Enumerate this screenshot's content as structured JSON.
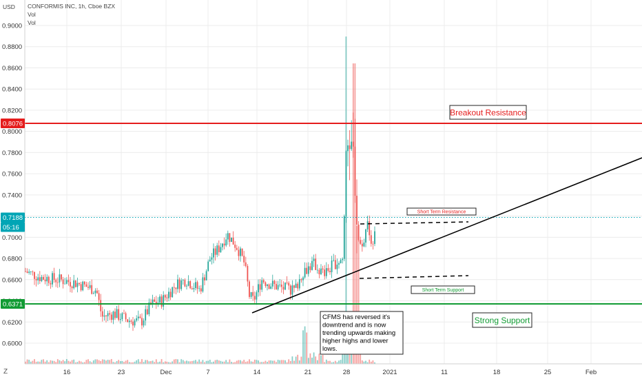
{
  "header": {
    "currency": "USD",
    "symbol_line": "CONFORMIS INC, 1h, Cboe BZX",
    "vol_label_1": "Vol",
    "vol_label_2": "Vol"
  },
  "timezone_button": "Z",
  "chart_data": {
    "type": "candlestick",
    "yticks": [
      "0.9000",
      "0.8800",
      "0.8600",
      "0.8400",
      "0.8200",
      "0.8000",
      "0.7800",
      "0.7600",
      "0.7400",
      "0.7200",
      "0.7000",
      "0.6800",
      "0.6600",
      "0.6400",
      "0.6200",
      "0.6000"
    ],
    "ylim": [
      0.58,
      0.92
    ],
    "xticks": [
      "16",
      "23",
      "Dec",
      "7",
      "14",
      "21",
      "28",
      "2021",
      "11",
      "18",
      "25",
      "Feb"
    ],
    "grid": true,
    "price_badges": [
      {
        "name": "breakout-level-badge",
        "value": "0.8076",
        "color": "#e51c1c"
      },
      {
        "name": "last-price-badge",
        "value": "0.7188",
        "color": "#00a5b5"
      },
      {
        "name": "countdown-badge",
        "value": "05:16",
        "color": "#00a5b5"
      },
      {
        "name": "support-level-badge",
        "value": "0.6371",
        "color": "#119b33"
      }
    ],
    "levels": {
      "breakout_resistance": 0.8076,
      "strong_support": 0.6371,
      "last_price": 0.7188
    },
    "annotations": {
      "breakout_resistance": "Breakout Resistance",
      "short_term_resistance": "Short Term Resistance",
      "short_term_support": "Short Term Support",
      "strong_support": "Strong Support",
      "note": "CFMS has reversed it's downtrend and is now trending upwards making higher highs and lower lows."
    },
    "colors": {
      "up": "#26a69a",
      "down": "#ef5350",
      "resistance": "#e51c1c",
      "support": "#119b33",
      "last_price": "#00a5b5",
      "trendline": "#000000"
    }
  }
}
